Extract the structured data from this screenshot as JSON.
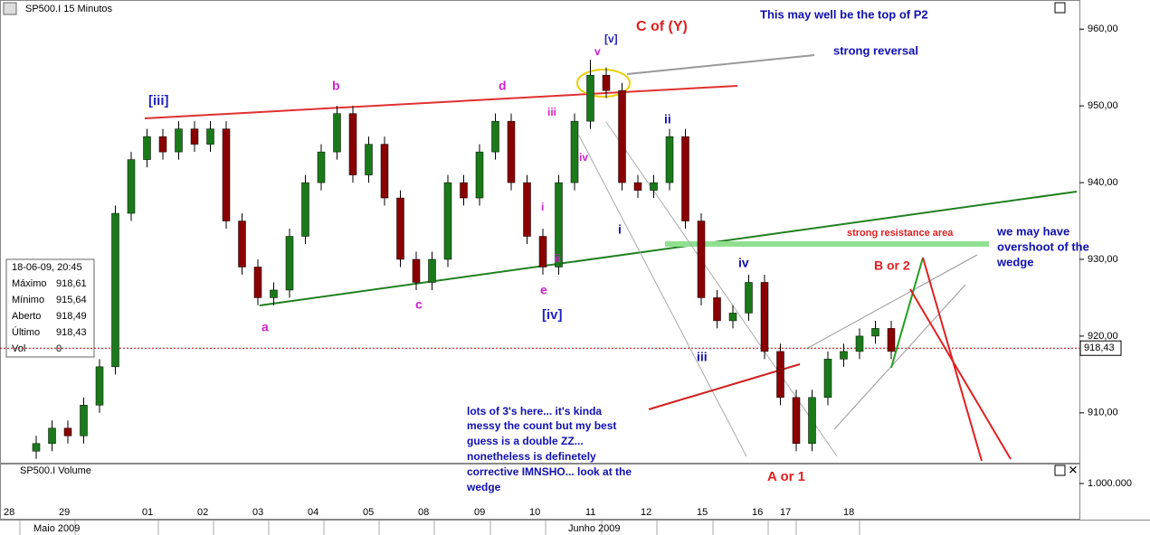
{
  "chart_data": {
    "type": "candlestick",
    "title": "SP500.I 15 Minutos",
    "volume_title": "SP500.I Volume",
    "ylim": [
      903.5,
      963.8
    ],
    "yticks": [
      {
        "value": 910,
        "label": "910,00"
      },
      {
        "value": 920,
        "label": "920,00"
      },
      {
        "value": 930,
        "label": "930,00"
      },
      {
        "value": 940,
        "label": "940,00"
      },
      {
        "value": 950,
        "label": "950,00"
      },
      {
        "value": 960,
        "label": "960,00"
      }
    ],
    "volume_ticks": [
      "1.000.000"
    ],
    "x_labels": [
      "28",
      "29",
      "01",
      "02",
      "03",
      "04",
      "05",
      "08",
      "09",
      "10",
      "11",
      "12",
      "15",
      "16",
      "17",
      "18"
    ],
    "month_labels": [
      "Maio 2009",
      "Junho 2009"
    ],
    "last_price": {
      "value": 918.43,
      "label": "918,43"
    },
    "up_color": "#1a7a1a",
    "down_color": "#8b0000",
    "series": {
      "open": [
        905,
        906,
        908,
        907,
        911,
        916,
        936,
        943,
        946,
        944,
        947,
        945,
        947,
        935,
        929,
        925,
        926,
        933,
        940,
        944,
        949,
        941,
        945,
        938,
        930,
        927,
        930,
        940,
        938,
        944,
        948,
        940,
        933,
        929,
        940,
        948,
        954,
        952,
        940,
        939,
        940,
        946,
        935,
        925,
        922,
        923,
        927,
        918,
        912,
        906,
        912,
        917,
        918,
        920,
        921
      ],
      "high": [
        907,
        909,
        909,
        912,
        917,
        937,
        944,
        947,
        947,
        948,
        948,
        948,
        948,
        936,
        930,
        927,
        934,
        941,
        945,
        950,
        950,
        946,
        946,
        939,
        931,
        931,
        941,
        941,
        945,
        949,
        949,
        941,
        934,
        941,
        949,
        956,
        955,
        953,
        941,
        941,
        947,
        947,
        936,
        926,
        924,
        928,
        928,
        919,
        913,
        913,
        918,
        919,
        921,
        922,
        922
      ],
      "low": [
        904,
        905,
        906,
        906,
        910,
        915,
        935,
        942,
        943,
        943,
        944,
        944,
        934,
        928,
        924,
        924,
        925,
        932,
        939,
        943,
        940,
        940,
        937,
        929,
        926,
        926,
        929,
        937,
        937,
        943,
        939,
        932,
        928,
        928,
        939,
        947,
        951,
        939,
        938,
        938,
        939,
        934,
        924,
        921,
        921,
        922,
        917,
        911,
        905,
        905,
        911,
        916,
        917,
        919,
        917
      ],
      "close": [
        906,
        908,
        907,
        911,
        916,
        936,
        943,
        946,
        944,
        947,
        945,
        947,
        935,
        929,
        925,
        926,
        933,
        940,
        944,
        949,
        941,
        945,
        938,
        930,
        927,
        930,
        940,
        938,
        944,
        948,
        940,
        933,
        929,
        940,
        948,
        954,
        952,
        940,
        939,
        940,
        946,
        935,
        925,
        922,
        923,
        927,
        918,
        912,
        906,
        912,
        917,
        918,
        920,
        921,
        918
      ]
    },
    "info_box": [
      [
        "18-06-09, 20:45"
      ],
      [
        "Máximo",
        "918,61"
      ],
      [
        "Mínimo",
        "915,64"
      ],
      [
        "Aberto",
        "918,49"
      ],
      [
        "Último",
        "918,43"
      ],
      [
        "Vol",
        "0"
      ]
    ],
    "annotations": [
      {
        "text": "[v]",
        "color": "#2020c0"
      },
      {
        "text": "v",
        "color": "#d020d0"
      },
      {
        "text": "C of  (Y)",
        "color": "#e02020"
      },
      {
        "text": "This may well be the top of P2",
        "color": "#1010b0"
      },
      {
        "text": "strong reversal",
        "color": "#1010b0"
      },
      {
        "text": "[iii]",
        "color": "#2020c0"
      },
      {
        "text": "b",
        "color": "#d020d0"
      },
      {
        "text": "d",
        "color": "#d020d0"
      },
      {
        "text": "iii",
        "color": "#d020d0"
      },
      {
        "text": "ii",
        "color": "#1010b0"
      },
      {
        "text": "iv",
        "color": "#d020d0"
      },
      {
        "text": "i",
        "color": "#d020d0"
      },
      {
        "text": "i",
        "color": "#1010b0"
      },
      {
        "text": "ii",
        "color": "#d020d0"
      },
      {
        "text": "e",
        "color": "#d020d0"
      },
      {
        "text": "c",
        "color": "#d020d0"
      },
      {
        "text": "a",
        "color": "#d020d0"
      },
      {
        "text": "[iv]",
        "color": "#2020c0"
      },
      {
        "text": "iv",
        "color": "#1010b0"
      },
      {
        "text": "iii",
        "color": "#1010b0"
      },
      {
        "text": "strong resistance area",
        "color": "#e02020"
      },
      {
        "text": "we may have",
        "color": "#1010b0"
      },
      {
        "text": "overshoot of the",
        "color": "#1010b0"
      },
      {
        "text": "wedge",
        "color": "#1010b0"
      },
      {
        "text": "B or 2",
        "color": "#e02020"
      },
      {
        "text": "A or 1",
        "color": "#e02020"
      },
      {
        "text": "lots of 3's here... it's kinda",
        "color": "#1010b0"
      },
      {
        "text": "messy the count but my best",
        "color": "#1010b0"
      },
      {
        "text": "guess is a double ZZ...",
        "color": "#1010b0"
      },
      {
        "text": "nonetheless is definetely",
        "color": "#1010b0"
      },
      {
        "text": "corrective IMNSHO... look at the",
        "color": "#1010b0"
      },
      {
        "text": "wedge",
        "color": "#1010b0"
      }
    ]
  }
}
